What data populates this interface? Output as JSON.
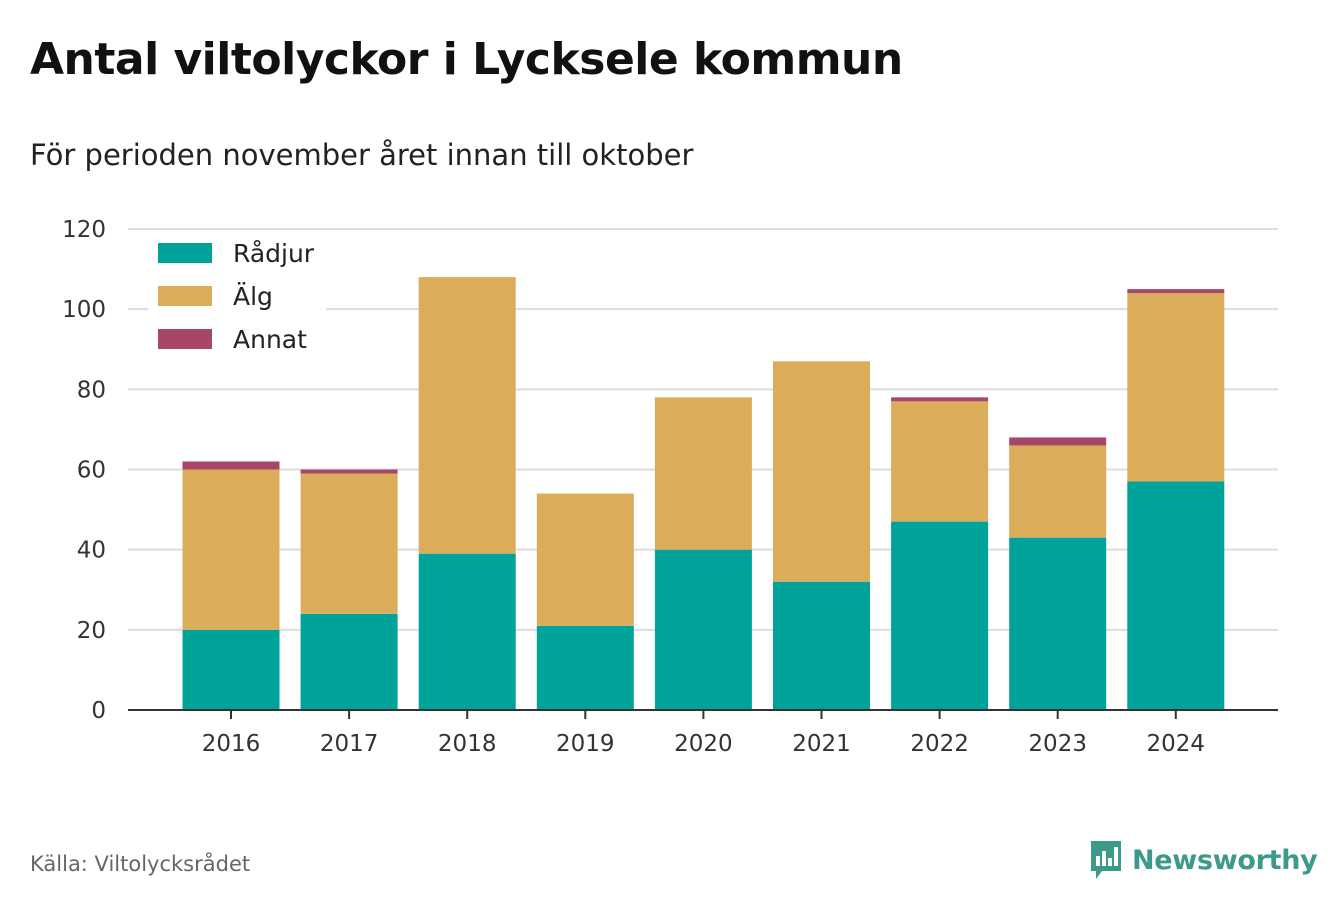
{
  "title": "Antal viltolyckor i Lycksele kommun",
  "subtitle": "För perioden november året innan till oktober",
  "source": "Källa: Viltolycksrådet",
  "brand": {
    "name": "Newsworthy",
    "icon": "newsworthy-logo-icon",
    "color": "#3d9a8b"
  },
  "chart_data": {
    "type": "bar",
    "stacked": true,
    "categories": [
      "2016",
      "2017",
      "2018",
      "2019",
      "2020",
      "2021",
      "2022",
      "2023",
      "2024"
    ],
    "series": [
      {
        "name": "Rådjur",
        "color": "#00a39a",
        "values": [
          20,
          24,
          39,
          21,
          40,
          32,
          47,
          43,
          57
        ]
      },
      {
        "name": "Älg",
        "color": "#dbac5a",
        "values": [
          40,
          35,
          69,
          33,
          38,
          55,
          30,
          23,
          47
        ]
      },
      {
        "name": "Annat",
        "color": "#a8466a",
        "values": [
          2,
          1,
          0,
          0,
          0,
          0,
          1,
          2,
          1
        ]
      }
    ],
    "ylim": [
      0,
      120
    ],
    "yticks": [
      "0",
      "20",
      "40",
      "60",
      "80",
      "100",
      "120"
    ],
    "grid": true,
    "legend_position": "top-left"
  }
}
